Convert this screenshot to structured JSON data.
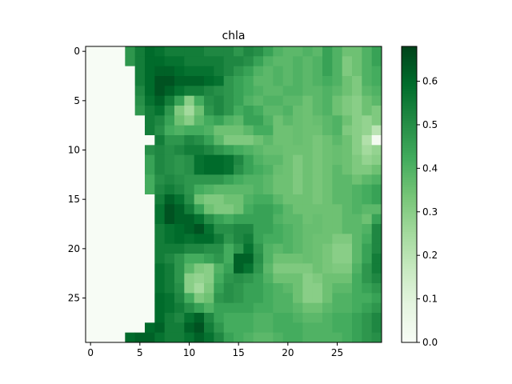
{
  "chart_data": {
    "type": "heatmap",
    "title": "chla",
    "xlabel": "",
    "ylabel": "",
    "colormap": "Greens",
    "vmin": 0.0,
    "vmax": 0.68,
    "x_range": [
      -0.5,
      29.5
    ],
    "y_range": [
      29.5,
      -0.5
    ],
    "x_ticks": [
      0,
      5,
      10,
      15,
      20,
      25
    ],
    "y_ticks": [
      0,
      5,
      10,
      15,
      20,
      25
    ],
    "colorbar_ticks": [
      0.0,
      0.1,
      0.2,
      0.3,
      0.4,
      0.5,
      0.6
    ],
    "values": [
      [
        0,
        0,
        0,
        0,
        0.48,
        0.55,
        0.6,
        0.58,
        0.55,
        0.55,
        0.55,
        0.55,
        0.52,
        0.52,
        0.52,
        0.48,
        0.52,
        0.5,
        0.45,
        0.4,
        0.38,
        0.38,
        0.4,
        0.38,
        0.45,
        0.4,
        0.35,
        0.35,
        0.4,
        0.45
      ],
      [
        0,
        0,
        0,
        0,
        0.48,
        0.55,
        0.6,
        0.6,
        0.58,
        0.58,
        0.55,
        0.55,
        0.55,
        0.55,
        0.52,
        0.52,
        0.5,
        0.45,
        0.4,
        0.38,
        0.38,
        0.4,
        0.38,
        0.4,
        0.45,
        0.4,
        0.32,
        0.35,
        0.4,
        0.45
      ],
      [
        0,
        0,
        0,
        0,
        0,
        0.55,
        0.6,
        0.62,
        0.62,
        0.6,
        0.58,
        0.58,
        0.58,
        0.55,
        0.52,
        0.48,
        0.45,
        0.4,
        0.38,
        0.4,
        0.38,
        0.4,
        0.38,
        0.4,
        0.45,
        0.4,
        0.32,
        0.35,
        0.4,
        0.42
      ],
      [
        0,
        0,
        0,
        0,
        0,
        0.55,
        0.6,
        0.65,
        0.65,
        0.62,
        0.62,
        0.62,
        0.6,
        0.58,
        0.48,
        0.45,
        0.42,
        0.38,
        0.38,
        0.4,
        0.38,
        0.4,
        0.38,
        0.4,
        0.42,
        0.4,
        0.35,
        0.32,
        0.4,
        0.42
      ],
      [
        0,
        0,
        0,
        0,
        0,
        0.52,
        0.6,
        0.65,
        0.62,
        0.58,
        0.55,
        0.55,
        0.52,
        0.5,
        0.48,
        0.45,
        0.42,
        0.4,
        0.38,
        0.38,
        0.4,
        0.4,
        0.38,
        0.38,
        0.4,
        0.38,
        0.35,
        0.32,
        0.38,
        0.4
      ],
      [
        0,
        0,
        0,
        0,
        0,
        0.5,
        0.58,
        0.62,
        0.55,
        0.45,
        0.3,
        0.42,
        0.5,
        0.52,
        0.48,
        0.45,
        0.4,
        0.38,
        0.4,
        0.4,
        0.38,
        0.38,
        0.35,
        0.38,
        0.4,
        0.35,
        0.32,
        0.3,
        0.35,
        0.38
      ],
      [
        0,
        0,
        0,
        0,
        0,
        0.48,
        0.55,
        0.58,
        0.48,
        0.32,
        0.25,
        0.35,
        0.48,
        0.52,
        0.48,
        0.42,
        0.45,
        0.42,
        0.38,
        0.38,
        0.4,
        0.36,
        0.35,
        0.38,
        0.4,
        0.35,
        0.32,
        0.3,
        0.35,
        0.32
      ],
      [
        0,
        0,
        0,
        0,
        0,
        0,
        0.55,
        0.52,
        0.45,
        0.35,
        0.3,
        0.38,
        0.42,
        0.45,
        0.4,
        0.38,
        0.45,
        0.45,
        0.4,
        0.35,
        0.38,
        0.36,
        0.35,
        0.36,
        0.38,
        0.4,
        0.35,
        0.3,
        0.28,
        0.32
      ],
      [
        0,
        0,
        0,
        0,
        0,
        0,
        0.55,
        0.5,
        0.42,
        0.4,
        0.42,
        0.42,
        0.4,
        0.35,
        0.35,
        0.35,
        0.38,
        0.42,
        0.42,
        0.35,
        0.35,
        0.36,
        0.35,
        0.35,
        0.38,
        0.4,
        0.32,
        0.3,
        0.28,
        0.2
      ],
      [
        0,
        0,
        0,
        0,
        0,
        0,
        0,
        0.55,
        0.48,
        0.48,
        0.52,
        0.5,
        0.45,
        0.38,
        0.32,
        0.32,
        0.32,
        0.35,
        0.38,
        0.35,
        0.35,
        0.36,
        0.35,
        0.33,
        0.35,
        0.38,
        0.35,
        0.3,
        0.22,
        0.02
      ],
      [
        0,
        0,
        0,
        0,
        0,
        0,
        0.5,
        0.52,
        0.5,
        0.52,
        0.55,
        0.55,
        0.52,
        0.48,
        0.45,
        0.42,
        0.4,
        0.38,
        0.36,
        0.36,
        0.35,
        0.35,
        0.35,
        0.33,
        0.35,
        0.36,
        0.35,
        0.3,
        0.25,
        0.28
      ],
      [
        0,
        0,
        0,
        0,
        0,
        0,
        0.45,
        0.52,
        0.5,
        0.48,
        0.5,
        0.58,
        0.6,
        0.6,
        0.58,
        0.52,
        0.45,
        0.4,
        0.38,
        0.38,
        0.35,
        0.32,
        0.35,
        0.33,
        0.35,
        0.36,
        0.35,
        0.32,
        0.28,
        0.3
      ],
      [
        0,
        0,
        0,
        0,
        0,
        0,
        0.45,
        0.52,
        0.5,
        0.48,
        0.5,
        0.58,
        0.6,
        0.6,
        0.58,
        0.5,
        0.45,
        0.42,
        0.4,
        0.36,
        0.35,
        0.32,
        0.35,
        0.33,
        0.35,
        0.38,
        0.35,
        0.32,
        0.32,
        0.35
      ],
      [
        0,
        0,
        0,
        0,
        0,
        0,
        0.42,
        0.5,
        0.52,
        0.5,
        0.48,
        0.48,
        0.48,
        0.48,
        0.45,
        0.42,
        0.4,
        0.4,
        0.38,
        0.35,
        0.35,
        0.32,
        0.35,
        0.33,
        0.35,
        0.38,
        0.38,
        0.35,
        0.38,
        0.4
      ],
      [
        0,
        0,
        0,
        0,
        0,
        0,
        0.42,
        0.52,
        0.55,
        0.52,
        0.48,
        0.42,
        0.4,
        0.38,
        0.38,
        0.38,
        0.38,
        0.4,
        0.38,
        0.35,
        0.35,
        0.32,
        0.35,
        0.33,
        0.35,
        0.38,
        0.38,
        0.4,
        0.42,
        0.45
      ],
      [
        0,
        0,
        0,
        0,
        0,
        0,
        0,
        0.55,
        0.62,
        0.58,
        0.5,
        0.35,
        0.32,
        0.32,
        0.35,
        0.35,
        0.4,
        0.42,
        0.42,
        0.38,
        0.35,
        0.35,
        0.35,
        0.33,
        0.35,
        0.38,
        0.38,
        0.4,
        0.42,
        0.45
      ],
      [
        0,
        0,
        0,
        0,
        0,
        0,
        0,
        0.58,
        0.65,
        0.62,
        0.55,
        0.45,
        0.35,
        0.32,
        0.32,
        0.35,
        0.42,
        0.45,
        0.45,
        0.42,
        0.38,
        0.35,
        0.35,
        0.35,
        0.35,
        0.35,
        0.38,
        0.4,
        0.38,
        0.38
      ],
      [
        0,
        0,
        0,
        0,
        0,
        0,
        0,
        0.58,
        0.65,
        0.62,
        0.62,
        0.58,
        0.5,
        0.45,
        0.42,
        0.45,
        0.45,
        0.45,
        0.45,
        0.4,
        0.38,
        0.38,
        0.35,
        0.36,
        0.35,
        0.35,
        0.38,
        0.38,
        0.35,
        0.45
      ],
      [
        0,
        0,
        0,
        0,
        0,
        0,
        0,
        0.55,
        0.58,
        0.6,
        0.62,
        0.65,
        0.58,
        0.5,
        0.5,
        0.52,
        0.52,
        0.45,
        0.45,
        0.42,
        0.4,
        0.38,
        0.36,
        0.36,
        0.35,
        0.35,
        0.38,
        0.38,
        0.4,
        0.52
      ],
      [
        0,
        0,
        0,
        0,
        0,
        0,
        0,
        0.55,
        0.58,
        0.6,
        0.58,
        0.6,
        0.6,
        0.55,
        0.48,
        0.52,
        0.55,
        0.45,
        0.42,
        0.42,
        0.4,
        0.38,
        0.36,
        0.35,
        0.35,
        0.32,
        0.32,
        0.38,
        0.42,
        0.52
      ],
      [
        0,
        0,
        0,
        0,
        0,
        0,
        0,
        0.55,
        0.55,
        0.55,
        0.52,
        0.52,
        0.5,
        0.5,
        0.42,
        0.48,
        0.58,
        0.48,
        0.4,
        0.38,
        0.4,
        0.38,
        0.36,
        0.35,
        0.33,
        0.3,
        0.3,
        0.38,
        0.45,
        0.52
      ],
      [
        0,
        0,
        0,
        0,
        0,
        0,
        0,
        0.55,
        0.52,
        0.48,
        0.42,
        0.42,
        0.45,
        0.48,
        0.42,
        0.62,
        0.62,
        0.5,
        0.4,
        0.35,
        0.35,
        0.35,
        0.36,
        0.35,
        0.33,
        0.3,
        0.3,
        0.38,
        0.45,
        0.55
      ],
      [
        0,
        0,
        0,
        0,
        0,
        0,
        0,
        0.58,
        0.55,
        0.48,
        0.38,
        0.32,
        0.3,
        0.4,
        0.45,
        0.62,
        0.58,
        0.48,
        0.38,
        0.32,
        0.32,
        0.32,
        0.32,
        0.35,
        0.33,
        0.32,
        0.32,
        0.4,
        0.48,
        0.55
      ],
      [
        0,
        0,
        0,
        0,
        0,
        0,
        0,
        0.58,
        0.55,
        0.48,
        0.3,
        0.28,
        0.3,
        0.42,
        0.48,
        0.5,
        0.48,
        0.45,
        0.4,
        0.35,
        0.35,
        0.35,
        0.3,
        0.32,
        0.35,
        0.35,
        0.35,
        0.42,
        0.48,
        0.52
      ],
      [
        0,
        0,
        0,
        0,
        0,
        0,
        0,
        0.58,
        0.55,
        0.5,
        0.3,
        0.25,
        0.32,
        0.45,
        0.5,
        0.48,
        0.45,
        0.45,
        0.42,
        0.4,
        0.38,
        0.35,
        0.3,
        0.3,
        0.35,
        0.38,
        0.38,
        0.42,
        0.45,
        0.48
      ],
      [
        0,
        0,
        0,
        0,
        0,
        0,
        0,
        0.6,
        0.58,
        0.52,
        0.42,
        0.32,
        0.35,
        0.48,
        0.5,
        0.48,
        0.45,
        0.45,
        0.42,
        0.4,
        0.4,
        0.35,
        0.3,
        0.3,
        0.35,
        0.4,
        0.4,
        0.42,
        0.42,
        0.45
      ],
      [
        0,
        0,
        0,
        0,
        0,
        0,
        0,
        0.6,
        0.58,
        0.55,
        0.5,
        0.45,
        0.4,
        0.45,
        0.45,
        0.45,
        0.45,
        0.42,
        0.42,
        0.4,
        0.4,
        0.38,
        0.35,
        0.35,
        0.38,
        0.4,
        0.4,
        0.42,
        0.45,
        0.48
      ],
      [
        0,
        0,
        0,
        0,
        0,
        0,
        0,
        0.6,
        0.55,
        0.52,
        0.58,
        0.62,
        0.52,
        0.45,
        0.42,
        0.42,
        0.42,
        0.4,
        0.4,
        0.42,
        0.42,
        0.4,
        0.38,
        0.38,
        0.4,
        0.42,
        0.42,
        0.45,
        0.48,
        0.52
      ],
      [
        0,
        0,
        0,
        0,
        0,
        0,
        0.6,
        0.62,
        0.55,
        0.55,
        0.62,
        0.65,
        0.55,
        0.48,
        0.42,
        0.42,
        0.42,
        0.4,
        0.4,
        0.42,
        0.42,
        0.42,
        0.4,
        0.4,
        0.4,
        0.42,
        0.42,
        0.45,
        0.48,
        0.52
      ],
      [
        0,
        0,
        0,
        0,
        0.6,
        0.62,
        0.62,
        0.58,
        0.55,
        0.55,
        0.58,
        0.62,
        0.58,
        0.52,
        0.45,
        0.42,
        0.4,
        0.38,
        0.38,
        0.4,
        0.42,
        0.42,
        0.4,
        0.4,
        0.4,
        0.4,
        0.42,
        0.45,
        0.48,
        0.5
      ]
    ]
  }
}
